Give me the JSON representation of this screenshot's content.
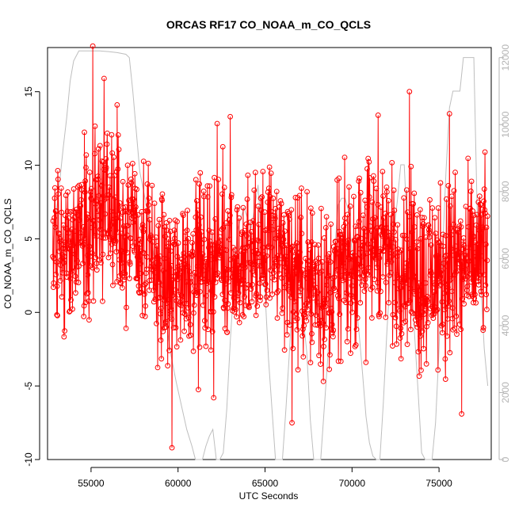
{
  "chart_data": {
    "type": "line",
    "title": "ORCAS RF17 CO_NOAA_m_CO_QCLS",
    "xlabel": "UTC Seconds",
    "ylabel": "CO_NOAA_m_CO_QCLS",
    "xlim": [
      52500,
      78000
    ],
    "ylim": [
      -10,
      18
    ],
    "y2lim": [
      0,
      12300
    ],
    "x_ticks": [
      55000,
      60000,
      65000,
      70000,
      75000
    ],
    "x_tick_labels": [
      "55000",
      "60000",
      "65000",
      "70000",
      "75000"
    ],
    "y_ticks": [
      -10,
      -5,
      0,
      5,
      10,
      15
    ],
    "y_tick_labels": [
      "-10",
      "-5",
      "0",
      "5",
      "10",
      "15"
    ],
    "y2_ticks": [
      0,
      2000,
      4000,
      6000,
      8000,
      10000,
      12000
    ],
    "y2_tick_labels": [
      "0",
      "2000",
      "4000",
      "6000",
      "8000",
      "10000",
      "12000"
    ],
    "grid": false,
    "legend": "none",
    "colors": {
      "primary": "#ff0000",
      "secondary": "#bebebe"
    },
    "primary_series": {
      "marker": "open-circle",
      "x_start": 52800,
      "x_end": 77800,
      "baseline": [
        [
          52800,
          4
        ],
        [
          53500,
          4.5
        ],
        [
          54500,
          5
        ],
        [
          55500,
          6.5
        ],
        [
          56000,
          7
        ],
        [
          56500,
          6.5
        ],
        [
          57500,
          5
        ],
        [
          58500,
          3.5
        ],
        [
          59500,
          2
        ],
        [
          61000,
          3.5
        ],
        [
          62500,
          4
        ],
        [
          64000,
          3.5
        ],
        [
          65500,
          5
        ],
        [
          66500,
          3
        ],
        [
          67500,
          2
        ],
        [
          68500,
          1.5
        ],
        [
          69500,
          3
        ],
        [
          70500,
          4
        ],
        [
          71500,
          5
        ],
        [
          72500,
          3.5
        ],
        [
          73500,
          3
        ],
        [
          74500,
          2
        ],
        [
          75500,
          3
        ],
        [
          76500,
          3
        ],
        [
          77800,
          4
        ]
      ],
      "highlights": [
        {
          "x": 55100,
          "y": 18.1
        },
        {
          "x": 55750,
          "y": 15.9
        },
        {
          "x": 56500,
          "y": 14.1
        },
        {
          "x": 59650,
          "y": -9.2
        },
        {
          "x": 62050,
          "y": -5.8
        },
        {
          "x": 63000,
          "y": 13.3
        },
        {
          "x": 66550,
          "y": -7.5
        },
        {
          "x": 71500,
          "y": 13.4
        },
        {
          "x": 73300,
          "y": 15.0
        },
        {
          "x": 75600,
          "y": 13.5
        },
        {
          "x": 76300,
          "y": -6.9
        }
      ]
    },
    "secondary_series": {
      "x": [
        52800,
        53000,
        53200,
        53400,
        53600,
        53800,
        54000,
        54300,
        55000,
        55500,
        56000,
        56500,
        57000,
        57200,
        57400,
        57600,
        57800,
        58100,
        58400,
        58700,
        59000,
        59300,
        59600,
        59900,
        60200,
        60500,
        60800,
        61000,
        61200,
        61400,
        61600,
        61800,
        62000,
        62200,
        62400,
        62600,
        62800,
        63000,
        63200,
        63400,
        63600,
        63800,
        64000,
        64200,
        64400,
        64600,
        64800,
        65000,
        65200,
        65400,
        65600,
        65800,
        66000,
        66200,
        66400,
        66600,
        66800,
        67000,
        67200,
        67400,
        67600,
        67800,
        68000,
        68200,
        68400,
        68600,
        68800,
        69000,
        69200,
        69400,
        69600,
        69800,
        70000,
        70200,
        70400,
        70600,
        70800,
        71000,
        71200,
        71400,
        71600,
        71800,
        72000,
        72200,
        72400,
        72600,
        72800,
        73000,
        73200,
        73400,
        73600,
        73800,
        74000,
        74200,
        74400,
        74600,
        74800,
        75000,
        75200,
        75400,
        75600,
        75800,
        76000,
        76200,
        76400,
        76600,
        76800,
        77000,
        77200,
        77400,
        77600,
        77800
      ],
      "y": [
        6200,
        7400,
        8300,
        9300,
        10200,
        11300,
        11900,
        12200,
        12200,
        12200,
        12180,
        12150,
        12100,
        12000,
        11000,
        9800,
        8600,
        7800,
        6800,
        5800,
        5300,
        4200,
        3100,
        2300,
        1600,
        900,
        400,
        0,
        0,
        0,
        400,
        700,
        900,
        0,
        0,
        200,
        1500,
        3500,
        5200,
        6800,
        7200,
        7500,
        7200,
        6900,
        7500,
        8200,
        6500,
        5000,
        3000,
        1500,
        0,
        0,
        0,
        1500,
        3200,
        5000,
        6200,
        5400,
        4200,
        3200,
        1200,
        0,
        0,
        0,
        1500,
        3000,
        4800,
        6200,
        7600,
        7800,
        7800,
        7400,
        6200,
        5000,
        3800,
        2600,
        1300,
        500,
        100,
        0,
        0,
        1700,
        3800,
        5500,
        6800,
        7700,
        8800,
        8800,
        6600,
        5400,
        3700,
        2000,
        200,
        0,
        0,
        0,
        1100,
        3300,
        6200,
        8600,
        10500,
        11000,
        11000,
        11000,
        12000,
        12000,
        12000,
        12000,
        7200,
        5200,
        3300,
        2200
      ]
    }
  }
}
